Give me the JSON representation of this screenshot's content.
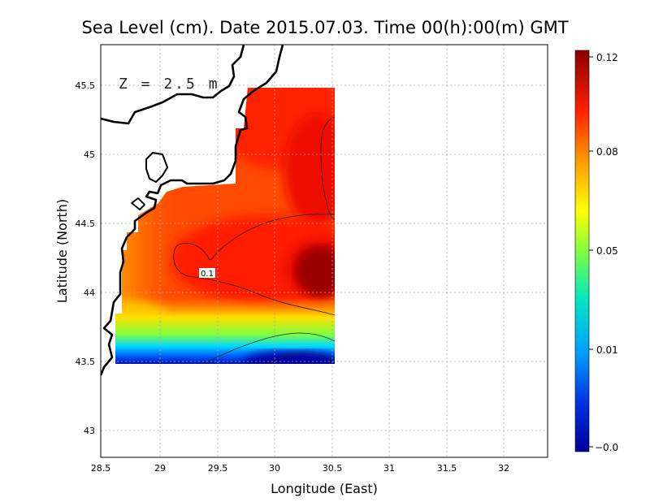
{
  "title": "Sea Level (cm). Date 2015.07.03. Time 00(h):00(m) GMT",
  "depth_label": "Z = 2.5 m",
  "contour_label": "0.1",
  "colors": {
    "low": "#0000a8",
    "mid_low": "#00c8ff",
    "mid": "#ffff00",
    "mid_high": "#ff8c00",
    "high": "#ff1e00",
    "max": "#8b0000",
    "coastline": "#000000",
    "grid": "#aaaaaa"
  },
  "chart_data": {
    "type": "heatmap",
    "title": "Sea Level (cm). Date 2015.07.03. Time 00(h):00(m) GMT",
    "xlabel": "Longitude (East)",
    "ylabel": "Latitude (North)",
    "xlim": [
      28.5,
      32.4
    ],
    "ylim": [
      42.8,
      45.8
    ],
    "x_ticks": [
      "28.5",
      "29",
      "29.5",
      "30",
      "30.5",
      "31",
      "31.5",
      "32"
    ],
    "y_ticks": [
      "43",
      "43.5",
      "44",
      "44.5",
      "45",
      "45.5"
    ],
    "grid": true,
    "colorbar": {
      "min": -0.0,
      "max": 0.12,
      "tick_labels": [
        "0.12",
        "0.08",
        "0.05",
        "0.01",
        "−0.0"
      ]
    },
    "contour_levels": [
      0.1
    ],
    "data_region": {
      "lon": [
        28.62,
        30.55
      ],
      "lat": [
        43.48,
        45.5
      ]
    }
  }
}
